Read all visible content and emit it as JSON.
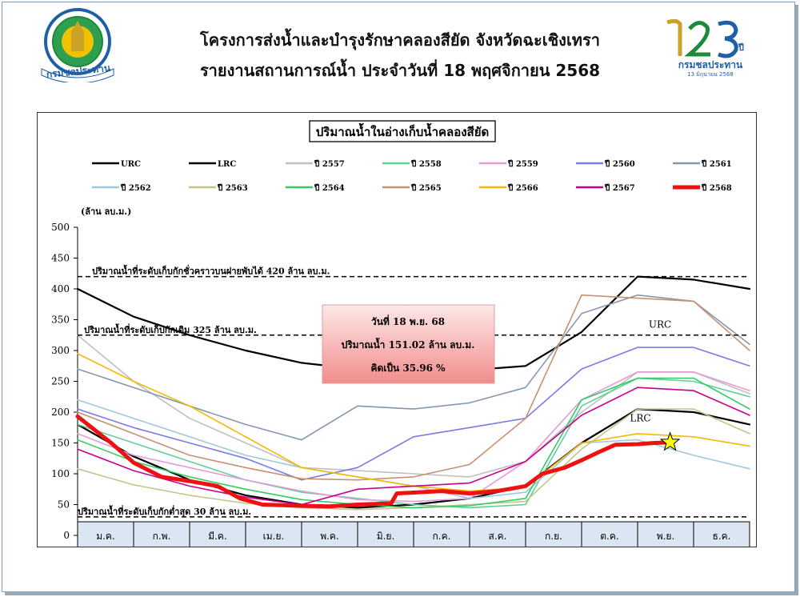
{
  "header": {
    "title_line1": "โครงการส่งน้ำและบำรุงรักษาคลองสียัด จังหวัดฉะเชิงเทรา",
    "title_line2": "รายงานสถานการณ์น้ำ ประจำวันที่ 18 พฤศจิกายน 2568",
    "logo_left_text": "กรมชลประทาน",
    "logo_right_number": "123",
    "logo_right_suffix": "ปี",
    "logo_right_text": "กรมชลประทาน",
    "logo_right_date": "13 มิถุนายน 2568"
  },
  "colors": {
    "brand_blue": "#1f5fa8",
    "brand_green": "#1b8a3a",
    "gold": "#c9a227"
  },
  "chart_data": {
    "type": "line",
    "title": "ปริมาณน้ำในอ่างเก็บน้ำคลองสียัด",
    "ylabel": "(ล้าน ลบ.ม.)",
    "ylim": [
      0,
      500
    ],
    "yticks": [
      0,
      50,
      100,
      150,
      200,
      250,
      300,
      350,
      400,
      450,
      500
    ],
    "categories": [
      "ม.ค.",
      "ก.พ.",
      "มี.ค.",
      "เม.ย.",
      "พ.ค.",
      "มิ.ย.",
      "ก.ค.",
      "ส.ค.",
      "ก.ย.",
      "ต.ค.",
      "พ.ย.",
      "ธ.ค."
    ],
    "grid": false,
    "legend_position": "top",
    "x_domain": [
      0,
      12
    ],
    "reference_lines": [
      {
        "value": 420,
        "label": "ปริมาณน้ำที่ระดับเก็บกักชั่วคราวบนฝายพับได้ 420 ล้าน ลบ.ม."
      },
      {
        "value": 325,
        "label": "ปริมาณน้ำที่ระดับเก็บกักเดิม 325 ล้าน ลบ.ม."
      },
      {
        "value": 30,
        "label": "ปริมาณน้ำที่ระดับเก็บกักต่ำสุด 30 ล้าน ลบ.ม."
      }
    ],
    "annotation": {
      "line1": "วันที่ 18 พ.ย. 68",
      "line2": "ปริมาณน้ำ 151.02 ล้าน ลบ.ม.",
      "line3": "คิดเป็น 35.96 %"
    },
    "curve_labels": {
      "urc": "URC",
      "lrc": "LRC"
    },
    "marker": {
      "x": 10.58,
      "y": 151.02
    },
    "series": [
      {
        "name": "URC",
        "color": "#000000",
        "width": 2.2,
        "points": [
          [
            0,
            400
          ],
          [
            1,
            355
          ],
          [
            2,
            325
          ],
          [
            3,
            300
          ],
          [
            4,
            280
          ],
          [
            5,
            270
          ],
          [
            6,
            265
          ],
          [
            7,
            268
          ],
          [
            8,
            275
          ],
          [
            9,
            330
          ],
          [
            10,
            420
          ],
          [
            11,
            415
          ],
          [
            12,
            400
          ]
        ]
      },
      {
        "name": "LRC",
        "color": "#000000",
        "width": 2.2,
        "points": [
          [
            0,
            180
          ],
          [
            1,
            128
          ],
          [
            2,
            90
          ],
          [
            3,
            65
          ],
          [
            4,
            50
          ],
          [
            5,
            45
          ],
          [
            6,
            50
          ],
          [
            7,
            60
          ],
          [
            8,
            80
          ],
          [
            9,
            150
          ],
          [
            10,
            205
          ],
          [
            11,
            200
          ],
          [
            12,
            180
          ]
        ]
      },
      {
        "name": "ปี 2557",
        "color": "#c0c0c0",
        "width": 1.6,
        "points": [
          [
            0,
            325
          ],
          [
            1,
            250
          ],
          [
            2,
            190
          ],
          [
            3,
            150
          ],
          [
            4,
            110
          ],
          [
            5,
            105
          ],
          [
            6,
            100
          ],
          [
            7,
            95
          ],
          [
            8,
            120
          ],
          [
            9,
            200
          ],
          [
            10,
            265
          ],
          [
            11,
            265
          ],
          [
            12,
            230
          ]
        ]
      },
      {
        "name": "ปี 2558",
        "color": "#66cc99",
        "width": 1.6,
        "points": [
          [
            0,
            180
          ],
          [
            1,
            150
          ],
          [
            2,
            120
          ],
          [
            3,
            90
          ],
          [
            4,
            70
          ],
          [
            5,
            60
          ],
          [
            6,
            50
          ],
          [
            7,
            45
          ],
          [
            8,
            50
          ],
          [
            9,
            210
          ],
          [
            10,
            255
          ],
          [
            11,
            250
          ],
          [
            12,
            225
          ]
        ]
      },
      {
        "name": "ปี 2559",
        "color": "#e89ad8",
        "width": 1.6,
        "points": [
          [
            0,
            165
          ],
          [
            1,
            130
          ],
          [
            2,
            110
          ],
          [
            3,
            90
          ],
          [
            4,
            72
          ],
          [
            5,
            58
          ],
          [
            6,
            55
          ],
          [
            7,
            60
          ],
          [
            8,
            120
          ],
          [
            9,
            220
          ],
          [
            10,
            265
          ],
          [
            11,
            265
          ],
          [
            12,
            235
          ]
        ]
      },
      {
        "name": "ปี 2560",
        "color": "#7b7be6",
        "width": 1.6,
        "points": [
          [
            0,
            205
          ],
          [
            1,
            175
          ],
          [
            2,
            150
          ],
          [
            3,
            125
          ],
          [
            4,
            90
          ],
          [
            5,
            110
          ],
          [
            6,
            160
          ],
          [
            7,
            175
          ],
          [
            8,
            190
          ],
          [
            9,
            270
          ],
          [
            10,
            305
          ],
          [
            11,
            305
          ],
          [
            12,
            275
          ]
        ]
      },
      {
        "name": "ปี 2561",
        "color": "#8497b0",
        "width": 1.6,
        "points": [
          [
            0,
            270
          ],
          [
            1,
            240
          ],
          [
            2,
            210
          ],
          [
            3,
            180
          ],
          [
            4,
            155
          ],
          [
            5,
            210
          ],
          [
            6,
            205
          ],
          [
            7,
            215
          ],
          [
            8,
            240
          ],
          [
            9,
            360
          ],
          [
            10,
            390
          ],
          [
            11,
            380
          ],
          [
            12,
            310
          ]
        ]
      },
      {
        "name": "ปี 2562",
        "color": "#9fc8dc",
        "width": 1.6,
        "points": [
          [
            0,
            220
          ],
          [
            1,
            190
          ],
          [
            2,
            160
          ],
          [
            3,
            130
          ],
          [
            4,
            110
          ],
          [
            5,
            95
          ],
          [
            6,
            80
          ],
          [
            7,
            60
          ],
          [
            8,
            70
          ],
          [
            9,
            150
          ],
          [
            10,
            155
          ],
          [
            11,
            130
          ],
          [
            12,
            108
          ]
        ]
      },
      {
        "name": "ปี 2563",
        "color": "#c4c48a",
        "width": 1.6,
        "points": [
          [
            0,
            108
          ],
          [
            1,
            82
          ],
          [
            2,
            65
          ],
          [
            3,
            52
          ],
          [
            4,
            45
          ],
          [
            5,
            42
          ],
          [
            6,
            45
          ],
          [
            7,
            50
          ],
          [
            8,
            55
          ],
          [
            9,
            140
          ],
          [
            10,
            205
          ],
          [
            11,
            205
          ],
          [
            12,
            165
          ]
        ]
      },
      {
        "name": "ปี 2564",
        "color": "#33cc66",
        "width": 1.6,
        "points": [
          [
            0,
            155
          ],
          [
            1,
            120
          ],
          [
            2,
            95
          ],
          [
            3,
            75
          ],
          [
            4,
            58
          ],
          [
            5,
            50
          ],
          [
            6,
            45
          ],
          [
            7,
            48
          ],
          [
            8,
            60
          ],
          [
            9,
            220
          ],
          [
            10,
            255
          ],
          [
            11,
            255
          ],
          [
            12,
            205
          ]
        ]
      },
      {
        "name": "ปี 2565",
        "color": "#c89070",
        "width": 1.6,
        "points": [
          [
            0,
            200
          ],
          [
            1,
            165
          ],
          [
            2,
            130
          ],
          [
            3,
            110
          ],
          [
            4,
            92
          ],
          [
            5,
            90
          ],
          [
            6,
            95
          ],
          [
            7,
            115
          ],
          [
            8,
            190
          ],
          [
            9,
            390
          ],
          [
            10,
            385
          ],
          [
            11,
            380
          ],
          [
            12,
            300
          ]
        ]
      },
      {
        "name": "ปี 2566",
        "color": "#f5b800",
        "width": 1.6,
        "points": [
          [
            0,
            295
          ],
          [
            1,
            250
          ],
          [
            2,
            210
          ],
          [
            3,
            160
          ],
          [
            4,
            110
          ],
          [
            5,
            95
          ],
          [
            6,
            80
          ],
          [
            7,
            72
          ],
          [
            8,
            78
          ],
          [
            9,
            150
          ],
          [
            10,
            165
          ],
          [
            11,
            160
          ],
          [
            12,
            145
          ]
        ]
      },
      {
        "name": "ปี 2567",
        "color": "#c8008c",
        "width": 1.6,
        "points": [
          [
            0,
            140
          ],
          [
            1,
            105
          ],
          [
            2,
            80
          ],
          [
            3,
            62
          ],
          [
            4,
            50
          ],
          [
            5,
            75
          ],
          [
            6,
            80
          ],
          [
            7,
            85
          ],
          [
            8,
            120
          ],
          [
            9,
            195
          ],
          [
            10,
            240
          ],
          [
            11,
            235
          ],
          [
            12,
            195
          ]
        ]
      },
      {
        "name": "ปี 2568",
        "color": "#ee1111",
        "width": 5,
        "points": [
          [
            0,
            193
          ],
          [
            0.6,
            150
          ],
          [
            1,
            118
          ],
          [
            1.5,
            95
          ],
          [
            2,
            88
          ],
          [
            2.5,
            80
          ],
          [
            2.9,
            60
          ],
          [
            3.3,
            50
          ],
          [
            4,
            48
          ],
          [
            4.5,
            47
          ],
          [
            5,
            50
          ],
          [
            5.6,
            52
          ],
          [
            5.7,
            68
          ],
          [
            6.5,
            72
          ],
          [
            7,
            68
          ],
          [
            7.5,
            72
          ],
          [
            8,
            80
          ],
          [
            8.3,
            100
          ],
          [
            8.7,
            110
          ],
          [
            9,
            122
          ],
          [
            9.3,
            135
          ],
          [
            9.6,
            147
          ],
          [
            10,
            148
          ],
          [
            10.3,
            150
          ],
          [
            10.58,
            151.02
          ]
        ]
      }
    ]
  }
}
